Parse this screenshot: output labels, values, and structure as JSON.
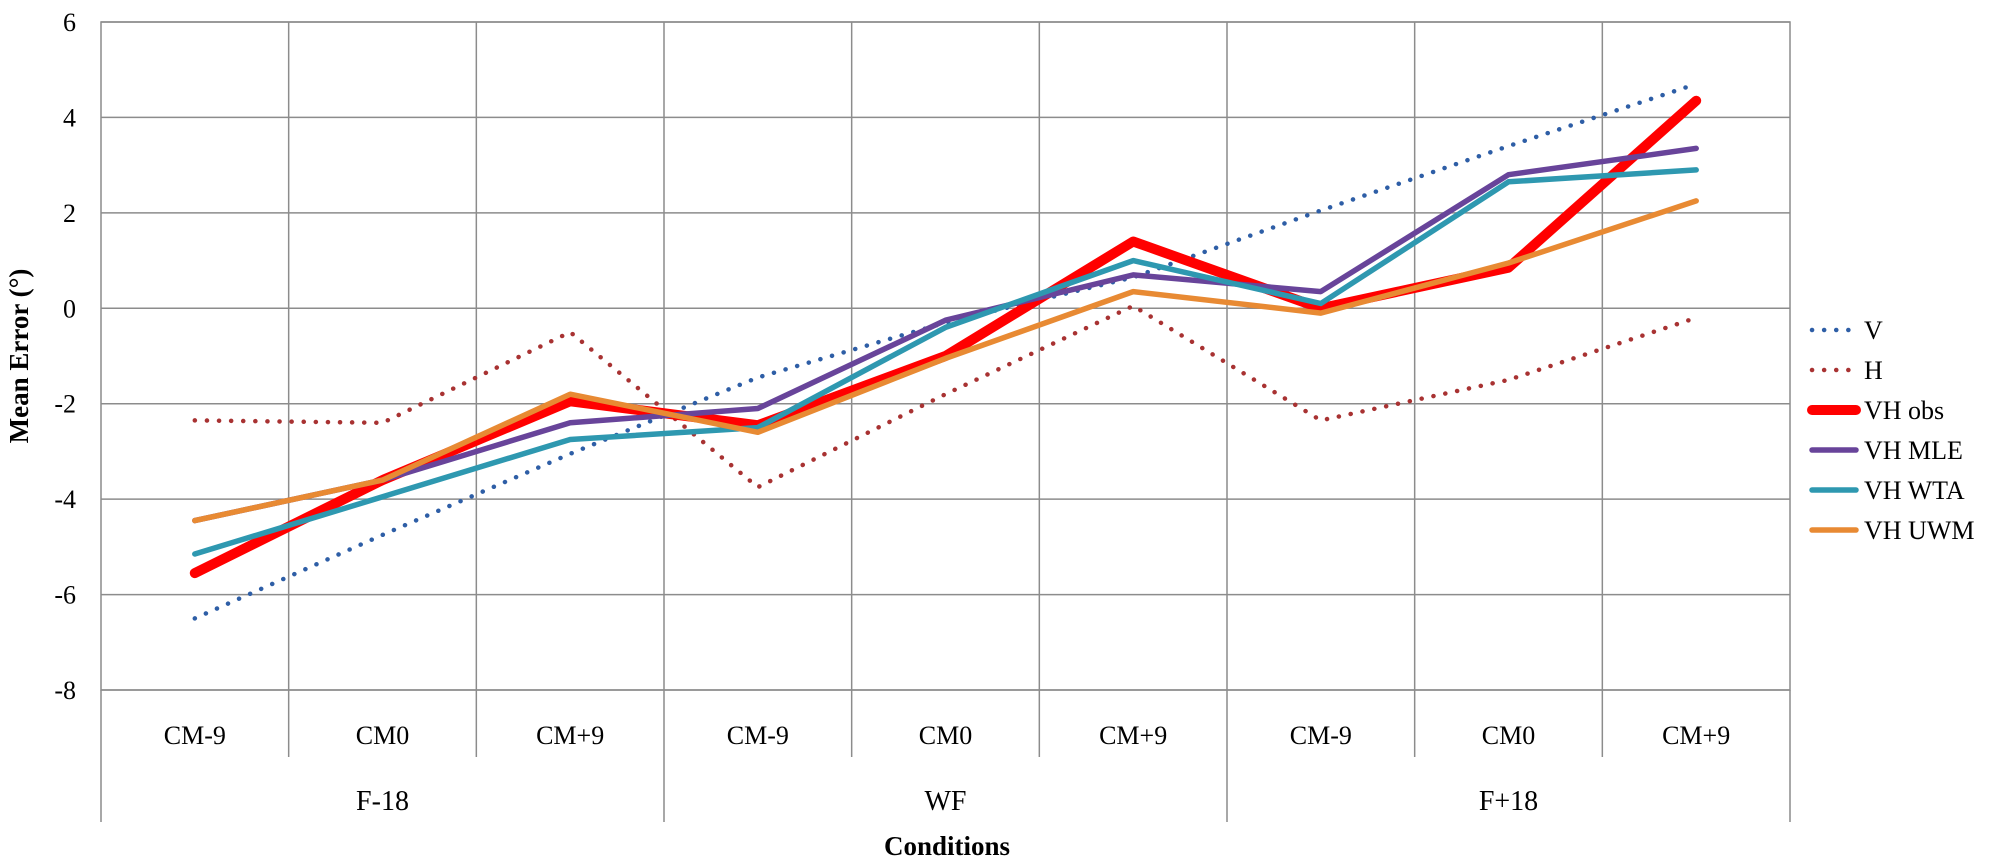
{
  "chart_data": {
    "type": "line",
    "xlabel": "Conditions",
    "ylabel": "Mean Error (°)",
    "ylim": [
      -8,
      6
    ],
    "yticks": [
      "6",
      "4",
      "2",
      "0",
      "-2",
      "-4",
      "-6",
      "-8"
    ],
    "grid": true,
    "legend_position": "right",
    "categories": [
      "CM-9",
      "CM0",
      "CM+9",
      "CM-9",
      "CM0",
      "CM+9",
      "CM-9",
      "CM0",
      "CM+9"
    ],
    "groups": [
      {
        "label": "F-18",
        "span": 3
      },
      {
        "label": "WF",
        "span": 3
      },
      {
        "label": "F+18",
        "span": 3
      }
    ],
    "series": [
      {
        "name": "V",
        "values": [
          -6.5,
          -4.75,
          -3.05,
          -1.45,
          -0.3,
          0.65,
          2.05,
          3.4,
          4.7
        ],
        "color": "#2E5EA6",
        "style": "dotted",
        "width": 4.5
      },
      {
        "name": "H",
        "values": [
          -2.35,
          -2.4,
          -0.5,
          -3.75,
          -1.8,
          0.05,
          -2.35,
          -1.5,
          -0.2
        ],
        "color": "#A83232",
        "style": "dotted",
        "width": 4.5
      },
      {
        "name": "VH obs",
        "values": [
          -5.55,
          -3.6,
          -1.95,
          -2.45,
          -1.0,
          1.4,
          0.0,
          0.85,
          4.35
        ],
        "color": "#FF0000",
        "style": "solid",
        "width": 10
      },
      {
        "name": "VH MLE",
        "values": [
          -4.45,
          -3.6,
          -2.4,
          -2.1,
          -0.25,
          0.7,
          0.35,
          2.8,
          3.35
        ],
        "color": "#68449A",
        "style": "solid",
        "width": 5.5
      },
      {
        "name": "VH WTA",
        "values": [
          -5.15,
          -3.95,
          -2.75,
          -2.5,
          -0.4,
          1.0,
          0.1,
          2.65,
          2.9
        ],
        "color": "#2E98B0",
        "style": "solid",
        "width": 5.5
      },
      {
        "name": "VH UWM",
        "values": [
          -4.45,
          -3.6,
          -1.8,
          -2.6,
          -1.05,
          0.35,
          -0.1,
          0.95,
          2.25
        ],
        "color": "#E88A33",
        "style": "solid",
        "width": 5.5
      }
    ]
  }
}
